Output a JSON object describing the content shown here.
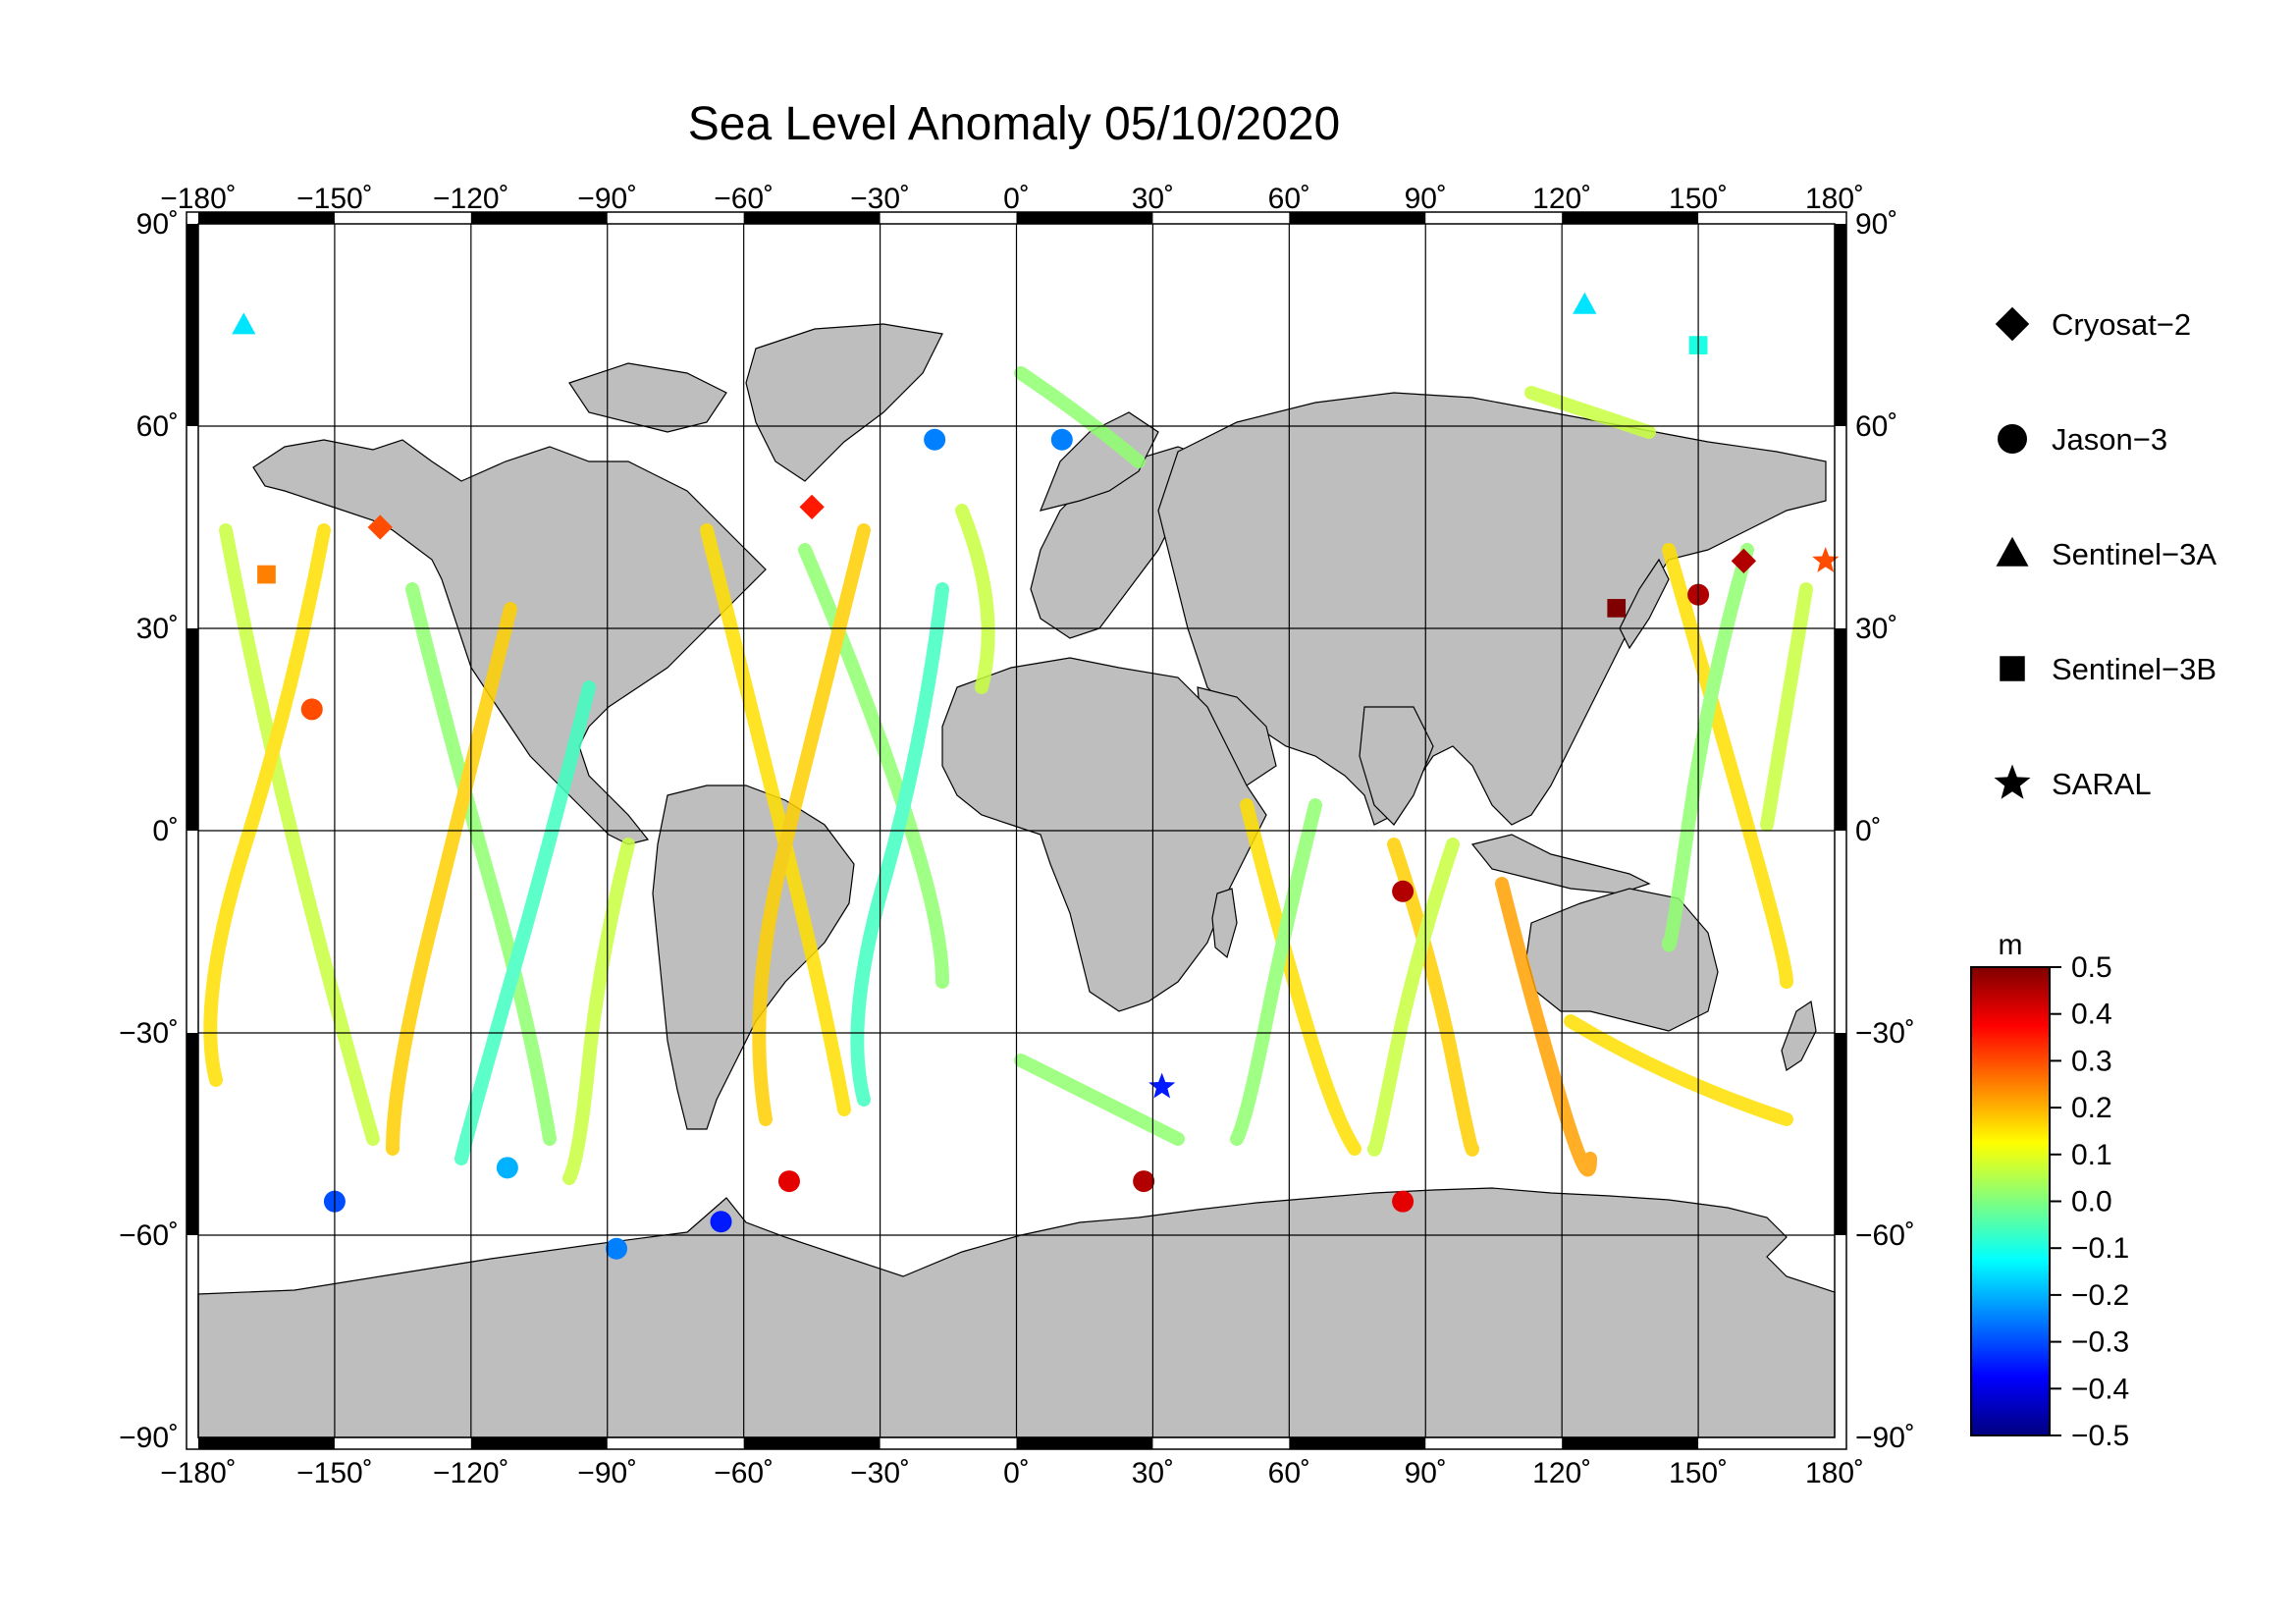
{
  "title": "Sea Level Anomaly 05/10/2020",
  "chart_data": {
    "type": "scatter",
    "title": "Sea Level Anomaly 05/10/2020",
    "projection": "equirectangular",
    "lon_range": [
      -180,
      180
    ],
    "lat_range": [
      -90,
      90
    ],
    "grid": true,
    "lon_ticks": [
      "−180˚",
      "−150˚",
      "−120˚",
      "−90˚",
      "−60˚",
      "−30˚",
      "0˚",
      "30˚",
      "60˚",
      "90˚",
      "120˚",
      "150˚",
      "180˚"
    ],
    "lon_tick_values": [
      -180,
      -150,
      -120,
      -90,
      -60,
      -30,
      0,
      30,
      60,
      90,
      120,
      150,
      180
    ],
    "lat_ticks": [
      "90˚",
      "60˚",
      "30˚",
      "0˚",
      "−30˚",
      "−60˚",
      "−90˚"
    ],
    "lat_tick_values": [
      90,
      60,
      30,
      0,
      -30,
      -60,
      -90
    ],
    "legend_placement": "right",
    "series": [
      {
        "name": "Cryosat−2",
        "marker": "diamond"
      },
      {
        "name": "Jason−3",
        "marker": "circle"
      },
      {
        "name": "Sentinel−3A",
        "marker": "triangle"
      },
      {
        "name": "Sentinel−3B",
        "marker": "square"
      },
      {
        "name": "SARAL",
        "marker": "star"
      }
    ],
    "colorbar": {
      "unit": "m",
      "min": -0.5,
      "max": 0.5,
      "tick_labels": [
        "0.5",
        "0.4",
        "0.3",
        "0.2",
        "0.1",
        "0.0",
        "−0.1",
        "−0.2",
        "−0.3",
        "−0.4",
        "−0.5"
      ],
      "tick_values": [
        0.5,
        0.4,
        0.3,
        0.2,
        0.1,
        0.0,
        -0.1,
        -0.2,
        -0.3,
        -0.4,
        -0.5
      ],
      "colormap": [
        "#00007f",
        "#0000ff",
        "#007fff",
        "#00ffff",
        "#7fff7f",
        "#ffff00",
        "#ff7f00",
        "#ff0000",
        "#7f0000"
      ]
    },
    "sample_points": [
      {
        "lon": -165,
        "lat": 38,
        "value": 0.25,
        "sat": "Sentinel−3B"
      },
      {
        "lon": -155,
        "lat": 18,
        "value": 0.3,
        "sat": "Jason−3"
      },
      {
        "lon": -140,
        "lat": 45,
        "value": 0.3,
        "sat": "Cryosat−2"
      },
      {
        "lon": -170,
        "lat": 75,
        "value": -0.15,
        "sat": "Sentinel−3A"
      },
      {
        "lon": -150,
        "lat": -55,
        "value": -0.3,
        "sat": "Jason−3"
      },
      {
        "lon": -112,
        "lat": -50,
        "value": -0.2,
        "sat": "Jason−3"
      },
      {
        "lon": -88,
        "lat": -62,
        "value": -0.25,
        "sat": "Jason−3"
      },
      {
        "lon": -65,
        "lat": -58,
        "value": -0.35,
        "sat": "Jason−3"
      },
      {
        "lon": -50,
        "lat": -52,
        "value": 0.4,
        "sat": "Jason−3"
      },
      {
        "lon": -45,
        "lat": 48,
        "value": 0.35,
        "sat": "Cryosat−2"
      },
      {
        "lon": -18,
        "lat": 58,
        "value": -0.25,
        "sat": "Jason−3"
      },
      {
        "lon": 10,
        "lat": 58,
        "value": -0.25,
        "sat": "Jason−3"
      },
      {
        "lon": 28,
        "lat": -52,
        "value": 0.45,
        "sat": "Jason−3"
      },
      {
        "lon": 32,
        "lat": -38,
        "value": -0.35,
        "sat": "SARAL"
      },
      {
        "lon": 85,
        "lat": -9,
        "value": 0.45,
        "sat": "Jason−3"
      },
      {
        "lon": 85,
        "lat": -55,
        "value": 0.4,
        "sat": "Jason−3"
      },
      {
        "lon": 132,
        "lat": 33,
        "value": 0.5,
        "sat": "Sentinel−3B"
      },
      {
        "lon": 150,
        "lat": 35,
        "value": 0.45,
        "sat": "Jason−3"
      },
      {
        "lon": 160,
        "lat": 40,
        "value": 0.45,
        "sat": "Cryosat−2"
      },
      {
        "lon": 178,
        "lat": 40,
        "value": 0.3,
        "sat": "SARAL"
      },
      {
        "lon": 125,
        "lat": 78,
        "value": -0.15,
        "sat": "Sentinel−3A"
      },
      {
        "lon": 150,
        "lat": 72,
        "value": -0.1,
        "sat": "Sentinel−3B"
      }
    ]
  }
}
